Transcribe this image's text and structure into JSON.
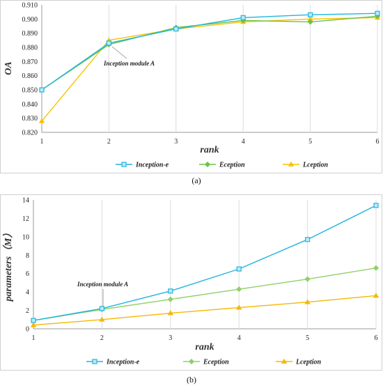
{
  "chart_data": [
    {
      "type": "line",
      "panel_label": "(a)",
      "xlabel": "rank",
      "ylabel": "OA",
      "x": [
        1,
        2,
        3,
        4,
        5,
        6
      ],
      "xlim": [
        1,
        6
      ],
      "ylim": [
        0.82,
        0.91
      ],
      "yticks": [
        "0.820",
        "0.830",
        "0.840",
        "0.850",
        "0.860",
        "0.870",
        "0.880",
        "0.890",
        "0.900",
        "0.910"
      ],
      "grid": "vertical",
      "legend_position": "bottom",
      "series": [
        {
          "name": "Inception-e",
          "color": "#1fb5e0",
          "marker": "square",
          "values": [
            0.85,
            0.883,
            0.893,
            0.901,
            0.903,
            0.904
          ]
        },
        {
          "name": "Eception",
          "color": "#6cc24a",
          "marker": "diamond",
          "values": [
            0.85,
            0.882,
            0.894,
            0.899,
            0.898,
            0.902
          ]
        },
        {
          "name": "Lception",
          "color": "#f5c400",
          "marker": "triangle",
          "values": [
            0.828,
            0.885,
            0.893,
            0.898,
            0.9,
            0.901
          ]
        }
      ],
      "annotation": {
        "text": "Inception module A",
        "x": 2
      }
    },
    {
      "type": "line",
      "panel_label": "(b)",
      "xlabel": "rank",
      "ylabel": "parameters（M）",
      "x": [
        1,
        2,
        3,
        4,
        5,
        6
      ],
      "xlim": [
        1,
        6
      ],
      "ylim": [
        0,
        14
      ],
      "yticks": [
        "0",
        "2",
        "4",
        "6",
        "8",
        "10",
        "12",
        "14"
      ],
      "grid": "vertical",
      "legend_position": "bottom",
      "series": [
        {
          "name": "Inception-e",
          "color": "#1fb5e0",
          "marker": "square",
          "values": [
            0.9,
            2.2,
            4.1,
            6.5,
            9.7,
            13.4
          ]
        },
        {
          "name": "Eception",
          "color": "#8fd06a",
          "marker": "diamond",
          "values": [
            0.9,
            2.1,
            3.2,
            4.3,
            5.4,
            6.6
          ]
        },
        {
          "name": "Lception",
          "color": "#f5b800",
          "marker": "triangle",
          "values": [
            0.4,
            1.0,
            1.7,
            2.3,
            2.9,
            3.6
          ]
        }
      ],
      "annotation": {
        "text": "Inception module A",
        "x": 2
      }
    }
  ]
}
